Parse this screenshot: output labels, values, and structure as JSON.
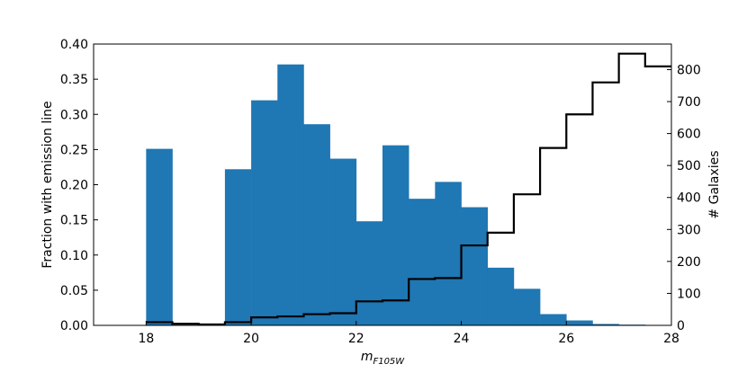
{
  "chart_data": {
    "type": "bar",
    "xlabel_main": "m",
    "xlabel_sub": "F105W",
    "ylabel_left": "Fraction with emission line",
    "ylabel_right": "# Galaxies",
    "xlim": [
      17,
      28
    ],
    "ylim_left": [
      0,
      0.4
    ],
    "ylim_right": [
      0,
      880
    ],
    "x_ticks": [
      18,
      20,
      22,
      24,
      26,
      28
    ],
    "y_left_ticks": [
      "0.00",
      "0.05",
      "0.10",
      "0.15",
      "0.20",
      "0.25",
      "0.30",
      "0.35",
      "0.40"
    ],
    "y_right_ticks": [
      "0",
      "100",
      "200",
      "300",
      "400",
      "500",
      "600",
      "700",
      "800"
    ],
    "bar_color": "#1f77b4",
    "line_color": "#000000",
    "bin_edges": [
      18,
      18.5,
      19,
      19.5,
      20,
      20.5,
      21,
      21.5,
      22,
      22.5,
      23,
      23.5,
      24,
      24.5,
      25,
      25.5,
      26,
      26.5,
      27,
      27.5,
      28
    ],
    "series": [
      {
        "axis": "left",
        "kind": "bar",
        "values": [
          0.251,
          0.0,
          0.0,
          0.222,
          0.32,
          0.371,
          0.286,
          0.237,
          0.148,
          0.256,
          0.18,
          0.204,
          0.168,
          0.082,
          0.052,
          0.016,
          0.007,
          0.002,
          0.001,
          0.0
        ]
      },
      {
        "axis": "right",
        "kind": "step",
        "values": [
          10,
          5,
          3,
          10,
          25,
          28,
          35,
          38,
          75,
          78,
          145,
          148,
          250,
          290,
          410,
          555,
          660,
          760,
          850,
          810
        ]
      }
    ]
  }
}
